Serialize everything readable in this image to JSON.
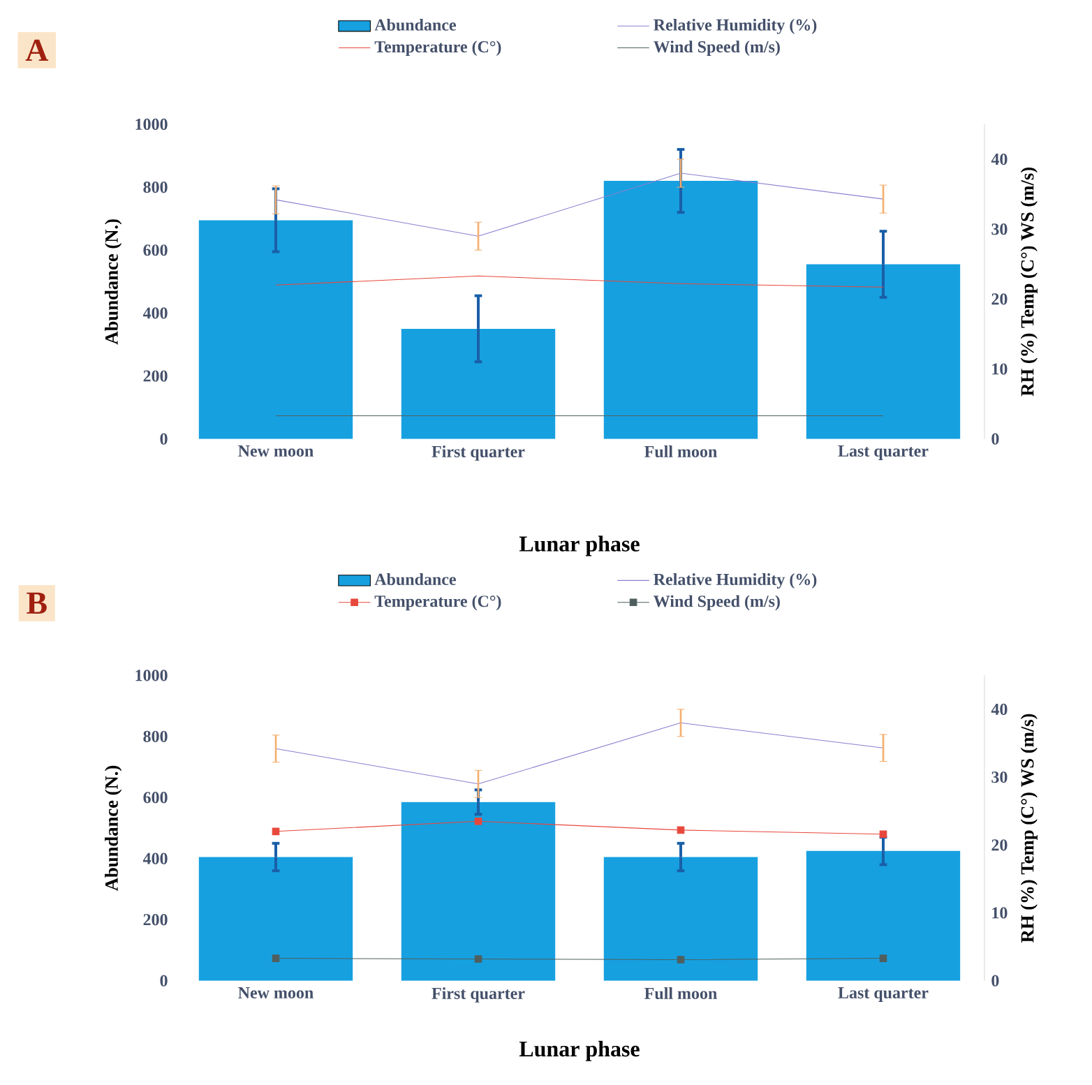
{
  "chart_data": [
    {
      "type": "bar",
      "title": "A",
      "xlabel": "Lunar phase",
      "ylabel": "Abundance (N.)",
      "y2label": "RH (%) Temp (C°) WS (m/s)",
      "categories": [
        "New moon",
        "First quarter",
        "Full moon",
        "Last quarter"
      ],
      "series": [
        {
          "name": "Abundance",
          "color": "#16a0e0",
          "values": [
            695,
            350,
            820,
            555
          ],
          "errors": [
            100,
            105,
            100,
            105
          ]
        },
        {
          "name": "Relative Humidity (%)",
          "type": "line",
          "axis": "y2",
          "color": "#8a7fd0",
          "values": [
            34.2,
            29,
            38,
            34.3
          ],
          "errors": [
            2,
            2,
            2,
            2
          ]
        },
        {
          "name": "Temperature (C°)",
          "type": "line",
          "axis": "y2",
          "color": "#e8483c",
          "values": [
            22,
            23.3,
            22.2,
            21.7
          ]
        },
        {
          "name": "Wind Speed (m/s)",
          "type": "line",
          "axis": "y2",
          "color": "#4f5f5f",
          "values": [
            3.3,
            3.3,
            3.3,
            3.3
          ]
        }
      ],
      "ylim": [
        0,
        1000
      ],
      "yticks": [
        0,
        200,
        400,
        600,
        800,
        1000
      ],
      "y2lim": [
        0,
        45
      ],
      "y2ticks": [
        0,
        10,
        20,
        30,
        40
      ],
      "legend": "top"
    },
    {
      "type": "bar",
      "title": "B",
      "xlabel": "Lunar phase",
      "ylabel": "Abundance (N.)",
      "y2label": "RH (%) Temp (C°) WS (m/s)",
      "categories": [
        "New moon",
        "First quarter",
        "Full moon",
        "Last quarter"
      ],
      "series": [
        {
          "name": "Abundance",
          "color": "#16a0e0",
          "values": [
            405,
            585,
            405,
            425
          ],
          "errors": [
            45,
            40,
            45,
            45
          ]
        },
        {
          "name": "Relative Humidity (%)",
          "type": "line",
          "axis": "y2",
          "color": "#8a7fd0",
          "values": [
            34.2,
            29,
            38,
            34.3
          ],
          "errors": [
            2,
            2,
            2,
            2
          ]
        },
        {
          "name": "Temperature (C°)",
          "type": "line",
          "axis": "y2",
          "color": "#e8483c",
          "marker": "square",
          "values": [
            22,
            23.5,
            22.2,
            21.6
          ]
        },
        {
          "name": "Wind Speed (m/s)",
          "type": "line",
          "axis": "y2",
          "color": "#4f5f5f",
          "marker": "square",
          "values": [
            3.3,
            3.2,
            3.1,
            3.3
          ]
        }
      ],
      "ylim": [
        0,
        1000
      ],
      "yticks": [
        0,
        200,
        400,
        600,
        800,
        1000
      ],
      "y2lim": [
        0,
        45
      ],
      "y2ticks": [
        0,
        10,
        20,
        30,
        40
      ],
      "legend": "top"
    }
  ]
}
